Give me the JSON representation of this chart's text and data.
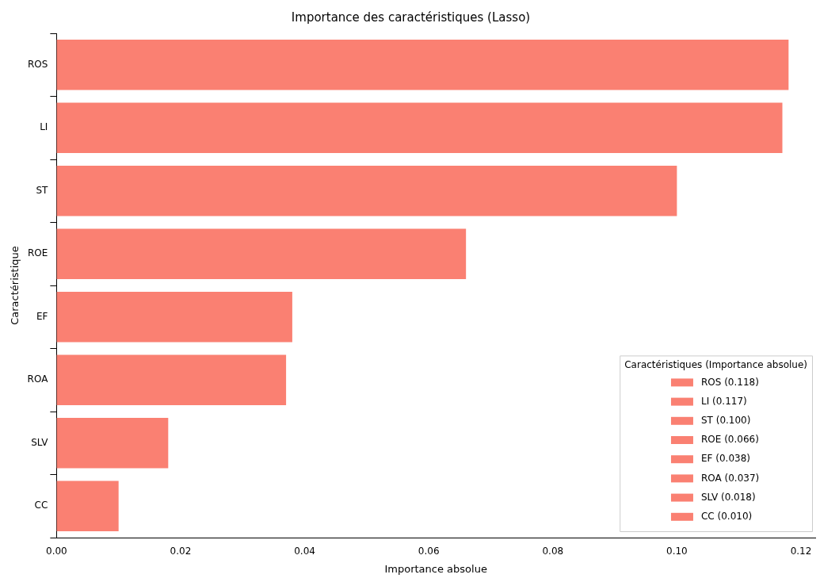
{
  "chart_data": {
    "type": "bar",
    "orientation": "horizontal",
    "title": "Importance des caractéristiques (Lasso)",
    "xlabel": "Importance absolue",
    "ylabel": "Caractéristique",
    "legend_title": "Caractéristiques (Importance absolue)",
    "legend": "bottom right",
    "grid": false,
    "categories": [
      "ROS",
      "LI",
      "ST",
      "ROE",
      "EF",
      "ROA",
      "SLV",
      "CC"
    ],
    "series": [
      {
        "name": "ROS (0.118)",
        "color": "#fa8072",
        "values": [
          0.118,
          null,
          null,
          null,
          null,
          null,
          null,
          null
        ]
      },
      {
        "name": "LI (0.117)",
        "color": "#fa8072",
        "values": [
          null,
          0.117,
          null,
          null,
          null,
          null,
          null,
          null
        ]
      },
      {
        "name": "ST (0.100)",
        "color": "#fa8072",
        "values": [
          null,
          null,
          0.1,
          null,
          null,
          null,
          null,
          null
        ]
      },
      {
        "name": "ROE (0.066)",
        "color": "#fa8072",
        "values": [
          null,
          null,
          null,
          0.066,
          null,
          null,
          null,
          null
        ]
      },
      {
        "name": "EF (0.038)",
        "color": "#fa8072",
        "values": [
          null,
          null,
          null,
          null,
          0.038,
          null,
          null,
          null
        ]
      },
      {
        "name": "ROA (0.037)",
        "color": "#fa8072",
        "values": [
          null,
          null,
          null,
          null,
          null,
          0.037,
          null,
          null
        ]
      },
      {
        "name": "SLV (0.018)",
        "color": "#fa8072",
        "values": [
          null,
          null,
          null,
          null,
          null,
          null,
          0.018,
          null
        ]
      },
      {
        "name": "CC (0.010)",
        "color": "#fa8072",
        "values": [
          null,
          null,
          null,
          null,
          null,
          null,
          null,
          0.01
        ]
      }
    ],
    "xlim": [
      0,
      0.1223
    ],
    "xticks": [
      {
        "value": 0,
        "label": "0.00"
      },
      {
        "value": 0.02,
        "label": "0.02"
      },
      {
        "value": 0.04,
        "label": "0.04"
      },
      {
        "value": 0.06,
        "label": "0.06"
      },
      {
        "value": 0.08,
        "label": "0.08"
      },
      {
        "value": 0.1,
        "label": "0.10"
      },
      {
        "value": 0.12,
        "label": "0.12"
      }
    ]
  }
}
